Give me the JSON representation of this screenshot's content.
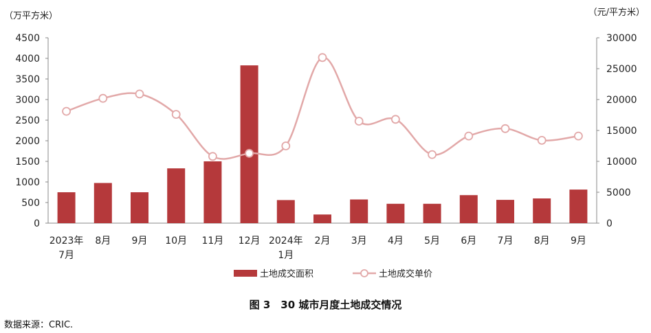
{
  "chart_data": {
    "type": "bar",
    "categories": [
      "2023年\n7月",
      "8月",
      "9月",
      "10月",
      "11月",
      "12月",
      "2024年\n1月",
      "2月",
      "3月",
      "4月",
      "5月",
      "6月",
      "7月",
      "8月",
      "9月"
    ],
    "left_axis_unit": "（万平方米）",
    "right_axis_unit": "（元/平方米）",
    "ylim_left": [
      0,
      4500
    ],
    "yticks_left": [
      0,
      500,
      1000,
      1500,
      2000,
      2500,
      3000,
      3500,
      4000,
      4500
    ],
    "ylim_right": [
      0,
      30000
    ],
    "yticks_right": [
      0,
      5000,
      10000,
      15000,
      20000,
      25000,
      30000
    ],
    "series": [
      {
        "name": "土地成交面积",
        "type": "bar",
        "axis": "left",
        "color": "#b5393b",
        "values": [
          750,
          975,
          750,
          1330,
          1500,
          3830,
          560,
          210,
          575,
          470,
          470,
          680,
          565,
          600,
          815
        ]
      },
      {
        "name": "土地成交单价",
        "type": "line",
        "axis": "right",
        "smooth": true,
        "color": "#e2a8a8",
        "values": [
          18100,
          20200,
          20900,
          17600,
          10800,
          11300,
          12500,
          26800,
          16500,
          16800,
          11100,
          14100,
          15300,
          13400,
          14100
        ]
      }
    ],
    "legend_position": "bottom",
    "grid": false
  },
  "caption": "图 3　30 城市月度土地成交情况",
  "source": "数据来源：CRIC."
}
